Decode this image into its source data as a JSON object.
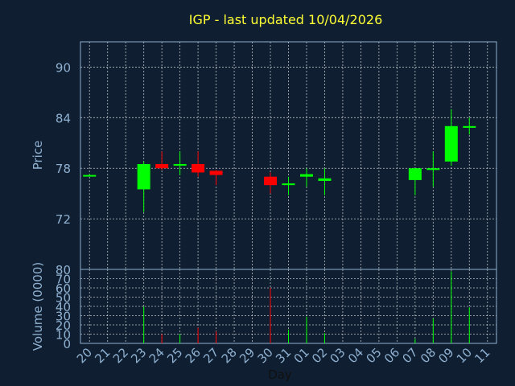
{
  "chart_data": {
    "type": "candlestick",
    "title": "IGP - last updated 10/04/2026",
    "xlabel": "Day",
    "price_panel": {
      "ylabel": "Price",
      "ylim": [
        66,
        93
      ],
      "yticks": [
        72,
        78,
        84,
        90
      ]
    },
    "volume_panel": {
      "ylabel": "Volume (0000)",
      "ylim": [
        0,
        80
      ],
      "yticks": [
        0,
        10,
        20,
        30,
        40,
        50,
        60,
        70,
        80
      ]
    },
    "grid": true,
    "x_labels": [
      "20",
      "21",
      "22",
      "23",
      "24",
      "25",
      "26",
      "27",
      "28",
      "29",
      "30",
      "31",
      "01",
      "02",
      "03",
      "04",
      "05",
      "06",
      "07",
      "08",
      "09",
      "10",
      "11"
    ],
    "candles": [
      {
        "day": "20",
        "open": 77.2,
        "high": 77.3,
        "low": 77.1,
        "close": 77.2,
        "volume": 0
      },
      {
        "day": "23",
        "open": 75.5,
        "high": 78.8,
        "low": 72.8,
        "close": 78.5,
        "volume": 40
      },
      {
        "day": "24",
        "open": 78.5,
        "high": 80.0,
        "low": 77.8,
        "close": 78.0,
        "volume": 10
      },
      {
        "day": "25",
        "open": 78.3,
        "high": 80.0,
        "low": 77.2,
        "close": 78.5,
        "volume": 10
      },
      {
        "day": "26",
        "open": 78.5,
        "high": 80.0,
        "low": 77.0,
        "close": 77.5,
        "volume": 17
      },
      {
        "day": "27",
        "open": 77.7,
        "high": 77.8,
        "low": 76.0,
        "close": 77.2,
        "volume": 13
      },
      {
        "day": "30",
        "open": 77.0,
        "high": 77.5,
        "low": 75.0,
        "close": 76.0,
        "volume": 60
      },
      {
        "day": "31",
        "open": 76.0,
        "high": 77.0,
        "low": 74.8,
        "close": 76.2,
        "volume": 15
      },
      {
        "day": "01",
        "open": 77.0,
        "high": 78.0,
        "low": 75.8,
        "close": 77.3,
        "volume": 29
      },
      {
        "day": "02",
        "open": 76.5,
        "high": 78.0,
        "low": 74.8,
        "close": 76.8,
        "volume": 11
      },
      {
        "day": "07",
        "open": 76.6,
        "high": 78.0,
        "low": 74.8,
        "close": 78.0,
        "volume": 5
      },
      {
        "day": "08",
        "open": 77.8,
        "high": 80.0,
        "low": 75.8,
        "close": 78.0,
        "volume": 27
      },
      {
        "day": "09",
        "open": 78.8,
        "high": 85.0,
        "low": 78.3,
        "close": 83.0,
        "volume": 78
      },
      {
        "day": "10",
        "open": 82.8,
        "high": 84.0,
        "low": 82.0,
        "close": 83.0,
        "volume": 39
      }
    ],
    "colors": {
      "background": "#0f1f31",
      "axis": "#8fb0d0",
      "grid": "#ffffff",
      "up": "#00ff00",
      "down": "#ff0000",
      "title": "#ffff33",
      "xlabel": "#101010"
    }
  }
}
